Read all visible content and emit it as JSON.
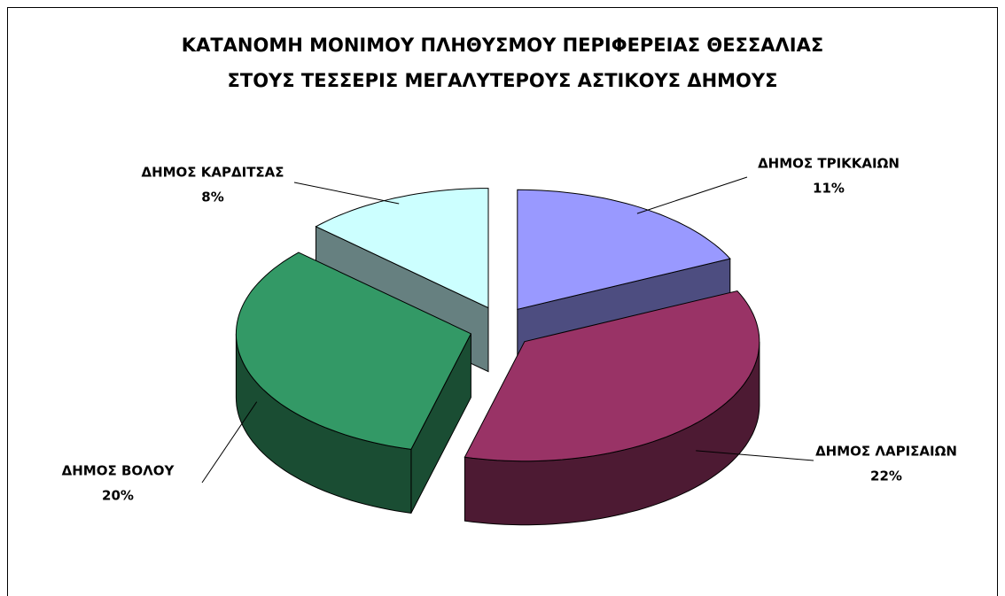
{
  "chart_data": {
    "type": "pie",
    "title": "ΚΑΤΑΝΟΜΗ ΜΟΝΙΜΟΥ ΠΛΗΘΥΣΜΟΥ ΠΕΡΙΦΕΡΕΙΑΣ ΘΕΣΣΑΛΙΑΣ",
    "subtitle": "ΣΤΟΥΣ ΤΕΣΣΕΡΙΣ ΜΕΓΑΛΥΤΕΡΟΥΣ ΑΣΤΙΚΟΥΣ ΔΗΜΟΥΣ",
    "categories": [
      "ΔΗΜΟΣ ΤΡΙΚΚΑΙΩΝ",
      "ΔΗΜΟΣ ΛΑΡΙΣΑΙΩΝ",
      "ΔΗΜΟΣ ΒΟΛΟΥ",
      "ΔΗΜΟΣ ΚΑΡΔΙΤΣΑΣ"
    ],
    "values": [
      11,
      22,
      20,
      8
    ],
    "value_labels": [
      "11%",
      "22%",
      "20%",
      "8%"
    ],
    "colors": [
      "#9999ff",
      "#993366",
      "#339966",
      "#ccffff"
    ]
  }
}
